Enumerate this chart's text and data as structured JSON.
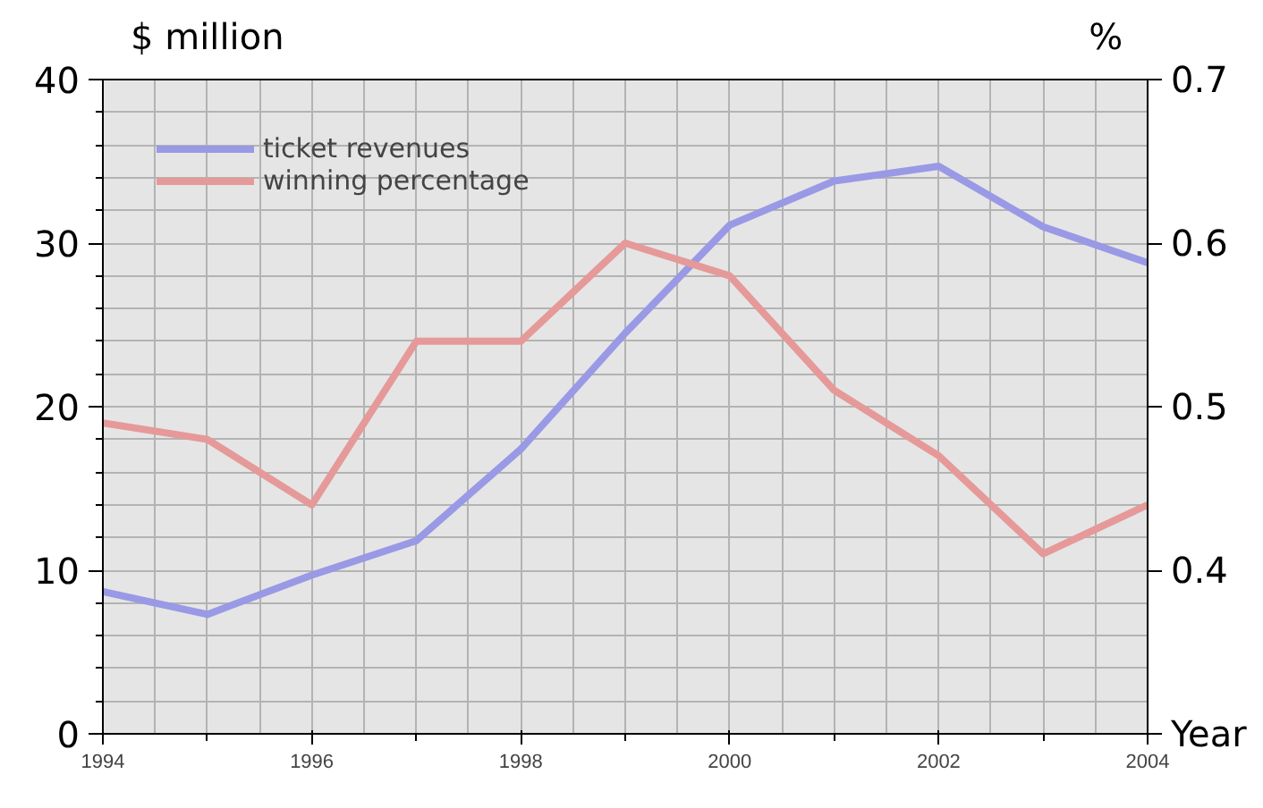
{
  "chart_data": {
    "type": "line",
    "xlabel": "Year",
    "ylabel": "$ million",
    "y2label": "%",
    "x": [
      1994,
      1995,
      1996,
      1997,
      1998,
      1999,
      2000,
      2001,
      2002,
      2003,
      2004
    ],
    "series": [
      {
        "name": "ticket revenues",
        "color": "#9999e6",
        "values": [
          8.7,
          7.3,
          9.7,
          11.8,
          17.4,
          24.5,
          31.1,
          33.8,
          34.7,
          31.0,
          28.8
        ]
      },
      {
        "name": "winning percentage",
        "color": "#e69999",
        "axis": "y2",
        "values": [
          0.49,
          0.48,
          0.44,
          0.54,
          0.54,
          0.6,
          0.58,
          0.51,
          0.47,
          0.41,
          0.44
        ]
      }
    ],
    "xlim": [
      1994,
      2004
    ],
    "xticks": [
      1994,
      1996,
      1998,
      2000,
      2002,
      2004
    ],
    "ylim": [
      0,
      40
    ],
    "yticks": [
      0,
      10,
      20,
      30,
      40
    ],
    "y2lim": [
      0.3,
      0.7
    ],
    "y2ticks": [
      0.4,
      0.5,
      0.6,
      0.7
    ],
    "grid": true,
    "legend": "top left",
    "marker": "none",
    "line_style": "solid"
  }
}
